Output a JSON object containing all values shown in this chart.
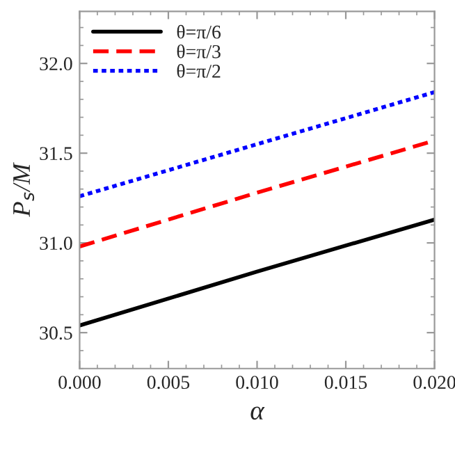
{
  "chart_data": {
    "type": "line",
    "xlabel": "α",
    "ylabel": "P$_{s}$/M",
    "x": [
      0.0,
      0.01,
      0.02
    ],
    "series": [
      {
        "name": "θ=π/6",
        "color": "#000000",
        "line_style": "solid",
        "values": [
          30.54,
          30.84,
          31.13
        ]
      },
      {
        "name": "θ=π/3",
        "color": "#ff0000",
        "line_style": "dashed",
        "values": [
          30.98,
          31.28,
          31.57
        ]
      },
      {
        "name": "θ=π/2",
        "color": "#0000ff",
        "line_style": "dotted",
        "values": [
          31.26,
          31.55,
          31.84
        ]
      }
    ],
    "xlim": [
      0.0,
      0.02
    ],
    "ylim": [
      30.3,
      32.29
    ],
    "xticks": [
      {
        "value": 0.0,
        "label": "0.000"
      },
      {
        "value": 0.005,
        "label": "0.005"
      },
      {
        "value": 0.01,
        "label": "0.010"
      },
      {
        "value": 0.015,
        "label": "0.015"
      },
      {
        "value": 0.02,
        "label": "0.020"
      }
    ],
    "yticks": [
      30.5,
      {
        "value": 31.0,
        "label": "31.0"
      },
      31.5,
      {
        "value": 32.0,
        "label": "32.0"
      }
    ],
    "grid": false,
    "legend": "top left"
  }
}
